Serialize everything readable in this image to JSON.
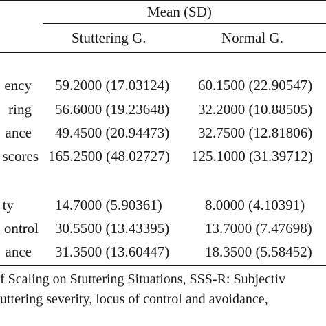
{
  "table": {
    "group_header": "Mean (SD)",
    "columns": [
      "Stuttering G.",
      "Normal G."
    ],
    "rows": [
      {
        "label": "ency",
        "stuttering": "59.2000 (17.03124)",
        "normal": "60.1500 (22.90547)"
      },
      {
        "label": "ring",
        "stuttering": "56.6000 (19.23648)",
        "normal": "32.2000 (10.88505)"
      },
      {
        "label": "ance",
        "stuttering": "49.4500 (20.94473)",
        "normal": "32.7500 (12.81806)"
      },
      {
        "label": "scores",
        "stuttering": "165.2500 (48.02727)",
        "normal": "125.1000 (31.39712)"
      },
      {
        "label": "ty",
        "stuttering": "14.7000 (5.90361)",
        "normal": "8.0000 (4.10391)"
      },
      {
        "label": "ontrol",
        "stuttering": "30.5500 (13.43395)",
        "normal": "13.7000 (7.47698)"
      },
      {
        "label": "ance",
        "stuttering": "31.3500 (13.60447)",
        "normal": "18.3500 (5.58452)"
      }
    ]
  },
  "caption": {
    "line1": "f Scaling on Stuttering Situations, SSS-R: Subjectiv",
    "line2": "uttering severity, locus of control and avoidance,"
  }
}
